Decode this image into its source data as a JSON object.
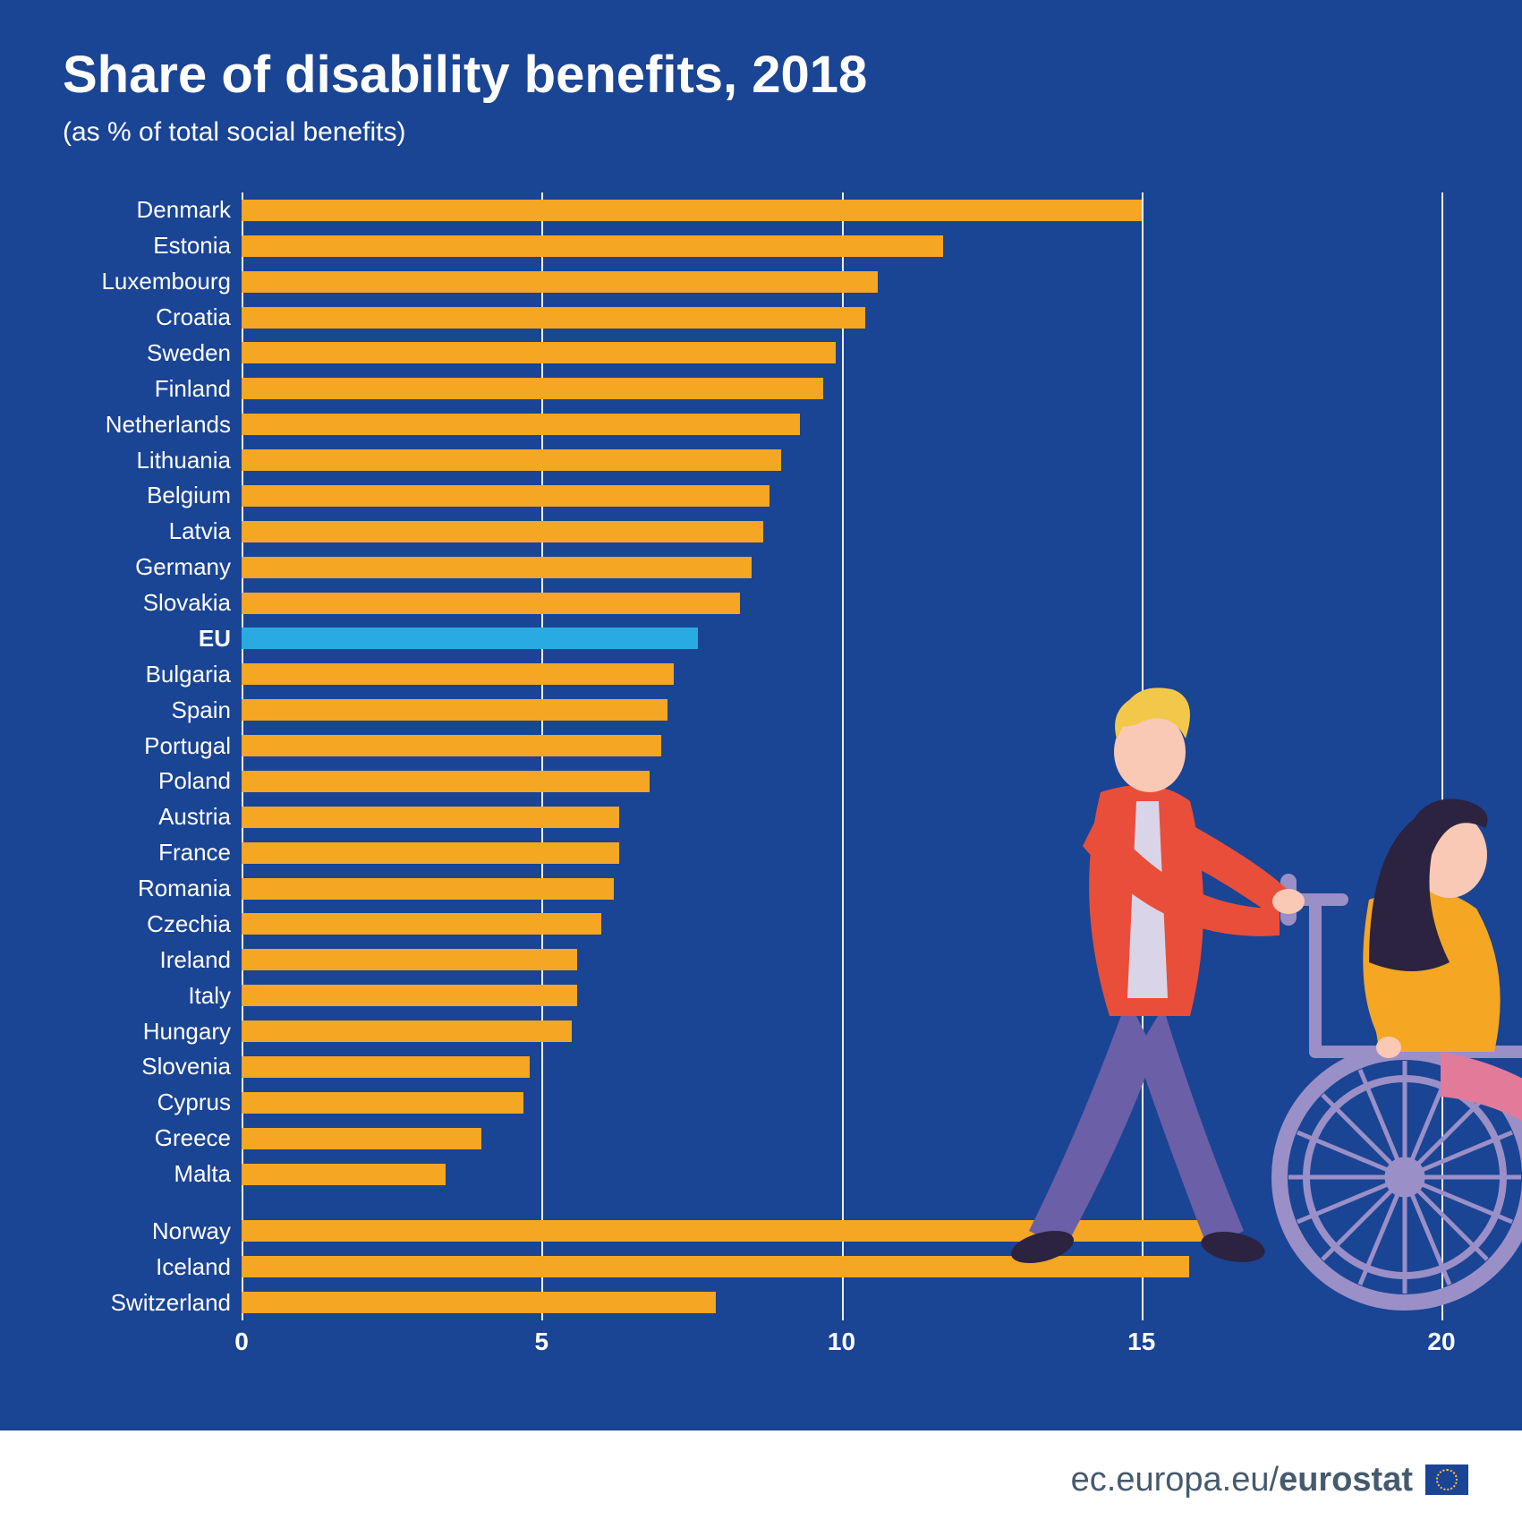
{
  "title": "Share of disability benefits, 2018",
  "subtitle": "(as % of total social benefits)",
  "footer_text_light": "ec.europa.eu/",
  "footer_text_bold": "eurostat",
  "chart": {
    "type": "bar-horizontal",
    "background_color": "#1a4494",
    "bar_color": "#f5a623",
    "highlight_color": "#29abe2",
    "gridline_color": "#ffffff",
    "text_color": "#ffffff",
    "title_fontsize": 58,
    "subtitle_fontsize": 30,
    "label_fontsize": 26,
    "axis_fontsize": 28,
    "xlim": [
      0,
      20
    ],
    "xtick_step": 5,
    "xticks": [
      0,
      5,
      10,
      15,
      20
    ],
    "groups": [
      {
        "rows": [
          {
            "label": "Denmark",
            "value": 15.0,
            "highlight": false
          },
          {
            "label": "Estonia",
            "value": 11.7,
            "highlight": false
          },
          {
            "label": "Luxembourg",
            "value": 10.6,
            "highlight": false
          },
          {
            "label": "Croatia",
            "value": 10.4,
            "highlight": false
          },
          {
            "label": "Sweden",
            "value": 9.9,
            "highlight": false
          },
          {
            "label": "Finland",
            "value": 9.7,
            "highlight": false
          },
          {
            "label": "Netherlands",
            "value": 9.3,
            "highlight": false
          },
          {
            "label": "Lithuania",
            "value": 9.0,
            "highlight": false
          },
          {
            "label": "Belgium",
            "value": 8.8,
            "highlight": false
          },
          {
            "label": "Latvia",
            "value": 8.7,
            "highlight": false
          },
          {
            "label": "Germany",
            "value": 8.5,
            "highlight": false
          },
          {
            "label": "Slovakia",
            "value": 8.3,
            "highlight": false
          },
          {
            "label": "EU",
            "value": 7.6,
            "highlight": true
          },
          {
            "label": "Bulgaria",
            "value": 7.2,
            "highlight": false
          },
          {
            "label": "Spain",
            "value": 7.1,
            "highlight": false
          },
          {
            "label": "Portugal",
            "value": 7.0,
            "highlight": false
          },
          {
            "label": "Poland",
            "value": 6.8,
            "highlight": false
          },
          {
            "label": "Austria",
            "value": 6.3,
            "highlight": false
          },
          {
            "label": "France",
            "value": 6.3,
            "highlight": false
          },
          {
            "label": "Romania",
            "value": 6.2,
            "highlight": false
          },
          {
            "label": "Czechia",
            "value": 6.0,
            "highlight": false
          },
          {
            "label": "Ireland",
            "value": 5.6,
            "highlight": false
          },
          {
            "label": "Italy",
            "value": 5.6,
            "highlight": false
          },
          {
            "label": "Hungary",
            "value": 5.5,
            "highlight": false
          },
          {
            "label": "Slovenia",
            "value": 4.8,
            "highlight": false
          },
          {
            "label": "Cyprus",
            "value": 4.7,
            "highlight": false
          },
          {
            "label": "Greece",
            "value": 4.0,
            "highlight": false
          },
          {
            "label": "Malta",
            "value": 3.4,
            "highlight": false
          }
        ]
      },
      {
        "rows": [
          {
            "label": "Norway",
            "value": 16.5,
            "highlight": false
          },
          {
            "label": "Iceland",
            "value": 15.8,
            "highlight": false
          },
          {
            "label": "Switzerland",
            "value": 7.9,
            "highlight": false
          }
        ]
      }
    ],
    "illustration": {
      "pusher_jacket": "#e94e3a",
      "pusher_pants": "#6b5fa8",
      "pusher_hair": "#f2c84b",
      "skin": "#f9c9b6",
      "sitter_top": "#f5a623",
      "sitter_hair": "#2b2340",
      "sitter_skin": "#f9c9b6",
      "sitter_pants": "#e27a9a",
      "wheel_color": "#9a8fc7",
      "chair_color": "#9a8fc7",
      "shoe_color": "#2b2340"
    }
  }
}
